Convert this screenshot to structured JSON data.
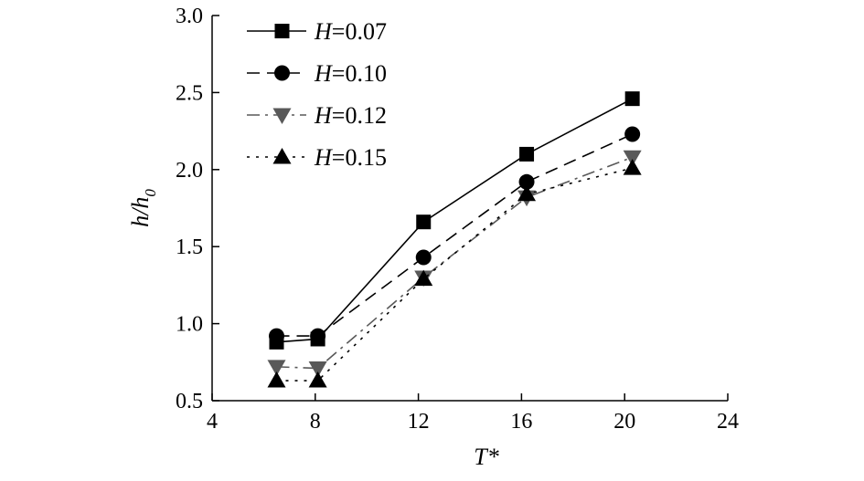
{
  "chart_data": {
    "type": "line",
    "xlabel": "T*",
    "ylabel_main": "h/h",
    "ylabel_sub": "0",
    "xlim": [
      4,
      24
    ],
    "ylim": [
      0.5,
      3.0
    ],
    "xticks": [
      4,
      8,
      12,
      16,
      20,
      24
    ],
    "yticks": [
      "0.5",
      "1.0",
      "1.5",
      "2.0",
      "2.5",
      "3.0"
    ],
    "grid": false,
    "legend_position": "top-left",
    "series": [
      {
        "name": "H=0.07",
        "name_var": "H",
        "name_val": "=0.07",
        "marker": "square",
        "dash": "solid",
        "color": "#000000",
        "x": [
          6.5,
          8.1,
          12.2,
          16.2,
          20.3
        ],
        "y": [
          0.88,
          0.9,
          1.66,
          2.1,
          2.46
        ]
      },
      {
        "name": "H=0.10",
        "name_var": "H",
        "name_val": "=0.10",
        "marker": "circle",
        "dash": "dashed",
        "color": "#000000",
        "x": [
          6.5,
          8.1,
          12.2,
          16.2,
          20.3
        ],
        "y": [
          0.92,
          0.92,
          1.43,
          1.92,
          2.23
        ]
      },
      {
        "name": "H=0.12",
        "name_var": "H",
        "name_val": "=0.12",
        "marker": "triangle-down",
        "dash": "dashdot",
        "color": "#595959",
        "x": [
          6.5,
          8.1,
          12.2,
          16.2,
          20.3
        ],
        "y": [
          0.72,
          0.71,
          1.3,
          1.82,
          2.08
        ]
      },
      {
        "name": "H=0.15",
        "name_var": "H",
        "name_val": "=0.15",
        "marker": "triangle-up",
        "dash": "dotted",
        "color": "#000000",
        "x": [
          6.5,
          8.1,
          12.2,
          16.2,
          20.3
        ],
        "y": [
          0.63,
          0.63,
          1.29,
          1.84,
          2.01
        ]
      }
    ]
  }
}
